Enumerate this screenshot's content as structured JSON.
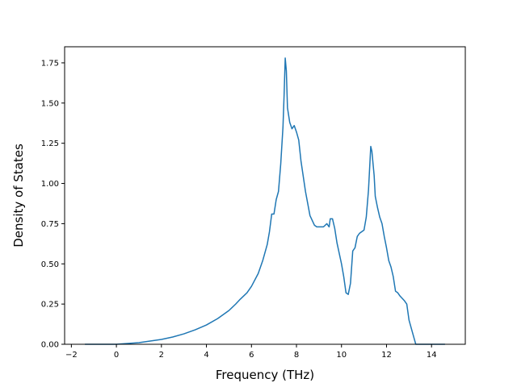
{
  "chart_data": {
    "type": "line",
    "title": "",
    "xlabel": "Frequency (THz)",
    "ylabel": "Density of States",
    "xlim": [
      -2.3,
      15.5
    ],
    "ylim": [
      0,
      1.85
    ],
    "xticks": [
      -2,
      0,
      2,
      4,
      6,
      8,
      10,
      12,
      14
    ],
    "xtick_labels": [
      "−2",
      "0",
      "2",
      "4",
      "6",
      "8",
      "10",
      "12",
      "14"
    ],
    "yticks": [
      0,
      0.25,
      0.5,
      0.75,
      1.0,
      1.25,
      1.5,
      1.75
    ],
    "ytick_labels": [
      "0.00",
      "0.25",
      "0.50",
      "0.75",
      "1.00",
      "1.25",
      "1.50",
      "1.75"
    ],
    "grid": false,
    "legend": "none",
    "series": [
      {
        "color": "#1f77b4",
        "x": [
          -1.4,
          0.0,
          0.5,
          1.0,
          1.5,
          2.0,
          2.5,
          3.0,
          3.5,
          4.0,
          4.5,
          5.0,
          5.3,
          5.5,
          5.8,
          6.0,
          6.3,
          6.5,
          6.7,
          6.8,
          6.9,
          7.0,
          7.1,
          7.2,
          7.3,
          7.4,
          7.45,
          7.5,
          7.55,
          7.6,
          7.7,
          7.8,
          7.9,
          8.0,
          8.1,
          8.2,
          8.4,
          8.6,
          8.8,
          8.9,
          9.0,
          9.2,
          9.35,
          9.45,
          9.5,
          9.6,
          9.7,
          9.8,
          10.0,
          10.1,
          10.2,
          10.3,
          10.4,
          10.5,
          10.6,
          10.7,
          10.8,
          10.9,
          11.0,
          11.1,
          11.2,
          11.3,
          11.35,
          11.45,
          11.5,
          11.6,
          11.7,
          11.8,
          11.9,
          12.0,
          12.1,
          12.2,
          12.3,
          12.4,
          12.5,
          12.6,
          12.8,
          12.9,
          13.0,
          13.1,
          13.2,
          13.3,
          13.35,
          13.4,
          14.6
        ],
        "y": [
          0.0,
          0.0,
          0.005,
          0.01,
          0.02,
          0.03,
          0.045,
          0.065,
          0.09,
          0.12,
          0.16,
          0.21,
          0.25,
          0.28,
          0.32,
          0.36,
          0.44,
          0.52,
          0.62,
          0.7,
          0.81,
          0.81,
          0.9,
          0.95,
          1.12,
          1.35,
          1.55,
          1.78,
          1.7,
          1.47,
          1.38,
          1.34,
          1.36,
          1.32,
          1.27,
          1.14,
          0.95,
          0.8,
          0.74,
          0.73,
          0.73,
          0.73,
          0.75,
          0.73,
          0.78,
          0.78,
          0.72,
          0.63,
          0.5,
          0.42,
          0.32,
          0.31,
          0.38,
          0.58,
          0.6,
          0.67,
          0.69,
          0.7,
          0.71,
          0.79,
          0.96,
          1.23,
          1.2,
          1.05,
          0.92,
          0.85,
          0.79,
          0.75,
          0.67,
          0.6,
          0.52,
          0.48,
          0.42,
          0.33,
          0.32,
          0.3,
          0.27,
          0.25,
          0.15,
          0.1,
          0.05,
          0.0,
          0.0,
          0.0,
          0.0
        ]
      }
    ]
  }
}
